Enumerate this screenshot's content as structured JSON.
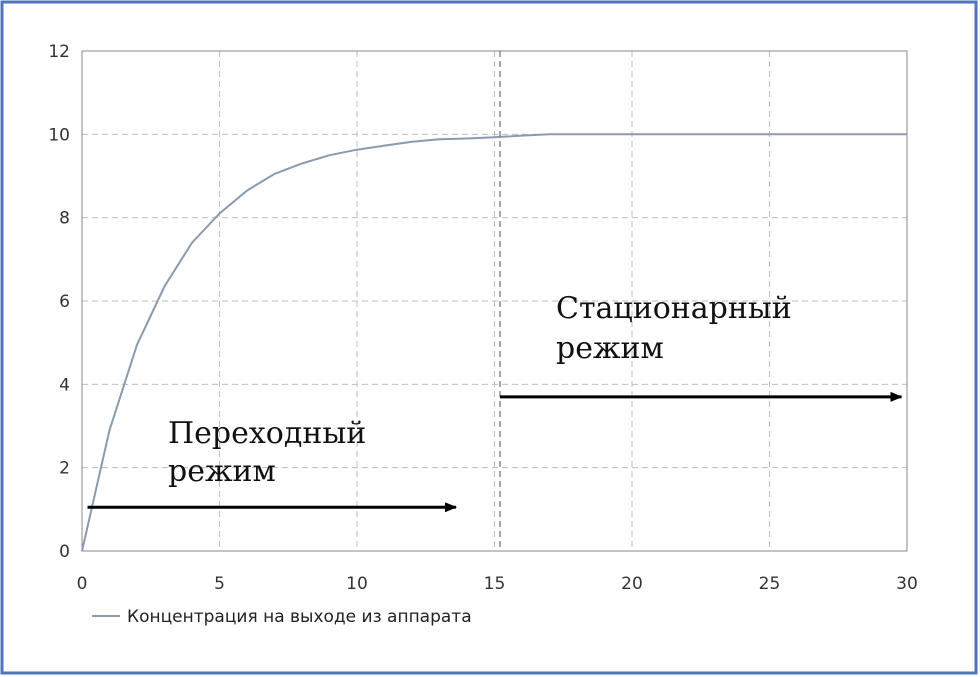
{
  "frame": {
    "border_color": "#4f74b8"
  },
  "chart_data": {
    "type": "line",
    "title": "",
    "xlabel": "",
    "ylabel": "",
    "xlim": [
      0,
      30
    ],
    "ylim": [
      0,
      12
    ],
    "x_ticks": [
      0,
      5,
      10,
      15,
      20,
      25,
      30
    ],
    "y_ticks": [
      0,
      2,
      4,
      6,
      8,
      10,
      12
    ],
    "grid": true,
    "grid_style": "dashed",
    "legend_position": "bottom-left",
    "series": [
      {
        "name": "Концентрация на выходе из аппарата",
        "color": "#8a9bb0",
        "x": [
          0,
          1,
          2,
          3,
          4,
          5,
          6,
          7,
          8,
          9,
          10,
          11,
          12,
          13,
          14,
          15,
          16,
          17,
          18,
          20,
          25,
          30
        ],
        "y": [
          0,
          2.9,
          4.95,
          6.35,
          7.4,
          8.1,
          8.65,
          9.05,
          9.3,
          9.5,
          9.63,
          9.73,
          9.82,
          9.88,
          9.9,
          9.93,
          9.97,
          10.0,
          10.0,
          10.0,
          10.0,
          10.0
        ]
      }
    ],
    "annotations": [
      {
        "id": "transient",
        "text_lines": [
          "Переходный",
          "режим"
        ],
        "arrow_from": [
          0.2,
          1.05
        ],
        "arrow_to": [
          13.6,
          1.05
        ]
      },
      {
        "id": "stationary",
        "text_lines": [
          "Стационарный",
          "режим"
        ],
        "arrow_from": [
          15.2,
          3.7
        ],
        "arrow_to": [
          29.8,
          3.7
        ]
      }
    ],
    "vertical_marker": {
      "x": 15.2,
      "style": "dashed"
    }
  }
}
